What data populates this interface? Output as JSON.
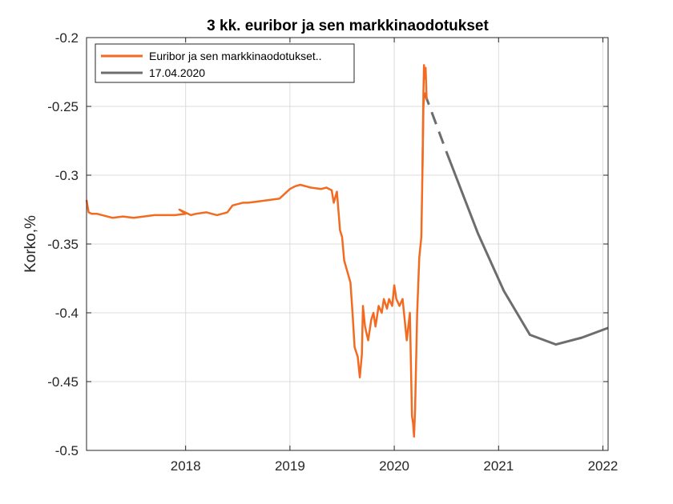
{
  "chart_data": {
    "type": "line",
    "title": "3 kk. euribor ja sen markkinaodotukset",
    "xlabel": "",
    "ylabel": "Korko,%",
    "xlim": [
      2017.05,
      2022.05
    ],
    "ylim": [
      -0.5,
      -0.2
    ],
    "x_ticks": [
      2018,
      2019,
      2020,
      2021,
      2022
    ],
    "x_tick_labels": [
      "2018",
      "2019",
      "2020",
      "2021",
      "2022"
    ],
    "y_ticks": [
      -0.2,
      -0.25,
      -0.3,
      -0.35,
      -0.4,
      -0.45,
      -0.5
    ],
    "y_tick_labels": [
      "-0.2",
      "-0.25",
      "-0.3",
      "-0.35",
      "-0.4",
      "-0.45",
      "-0.5"
    ],
    "grid": true,
    "legend_position": "top-left",
    "colors": {
      "euribor": "#f26b21",
      "forecast": "#6d6d6d",
      "grid": "#dcdcdc",
      "axes": "#262626"
    },
    "series": [
      {
        "name": "Euribor ja sen markkinaodotukset..",
        "style": "solid",
        "color": "#f26b21",
        "x": [
          2017.05,
          2017.07,
          2017.1,
          2017.15,
          2017.2,
          2017.3,
          2017.4,
          2017.5,
          2017.6,
          2017.7,
          2017.8,
          2017.9,
          2018.0,
          2017.94,
          2018.05,
          2018.1,
          2018.2,
          2018.3,
          2018.4,
          2018.45,
          2018.5,
          2018.55,
          2018.6,
          2018.7,
          2018.8,
          2018.9,
          2019.0,
          2019.05,
          2019.1,
          2019.2,
          2019.3,
          2019.35,
          2019.4,
          2019.42,
          2019.45,
          2019.48,
          2019.5,
          2019.52,
          2019.55,
          2019.58,
          2019.6,
          2019.62,
          2019.65,
          2019.67,
          2019.69,
          2019.7,
          2019.72,
          2019.75,
          2019.78,
          2019.8,
          2019.82,
          2019.85,
          2019.88,
          2019.9,
          2019.93,
          2019.95,
          2019.98,
          2020.0,
          2020.02,
          2020.05,
          2020.08,
          2020.1,
          2020.12,
          2020.15,
          2020.17,
          2020.18,
          2020.19,
          2020.2,
          2020.22,
          2020.24,
          2020.26,
          2020.27,
          2020.28,
          2020.29
        ],
        "y": [
          -0.318,
          -0.327,
          -0.328,
          -0.328,
          -0.329,
          -0.331,
          -0.33,
          -0.331,
          -0.33,
          -0.329,
          -0.329,
          -0.329,
          -0.328,
          -0.325,
          -0.329,
          -0.328,
          -0.327,
          -0.329,
          -0.327,
          -0.322,
          -0.321,
          -0.32,
          -0.32,
          -0.319,
          -0.318,
          -0.317,
          -0.31,
          -0.308,
          -0.307,
          -0.309,
          -0.31,
          -0.309,
          -0.311,
          -0.32,
          -0.312,
          -0.34,
          -0.345,
          -0.362,
          -0.37,
          -0.378,
          -0.4,
          -0.425,
          -0.432,
          -0.447,
          -0.43,
          -0.395,
          -0.41,
          -0.42,
          -0.405,
          -0.4,
          -0.41,
          -0.395,
          -0.4,
          -0.39,
          -0.397,
          -0.39,
          -0.395,
          -0.38,
          -0.39,
          -0.395,
          -0.39,
          -0.405,
          -0.42,
          -0.4,
          -0.475,
          -0.48,
          -0.49,
          -0.47,
          -0.4,
          -0.36,
          -0.345,
          -0.3,
          -0.25,
          -0.24
        ]
      },
      {
        "name": "17.04.2020",
        "style": "solid",
        "color": "#6d6d6d",
        "x": [
          2020.5,
          2020.8,
          2021.05,
          2021.3,
          2021.55,
          2021.8,
          2022.05
        ],
        "y": [
          -0.283,
          -0.342,
          -0.384,
          -0.416,
          -0.423,
          -0.418,
          -0.411
        ]
      }
    ],
    "spike": {
      "x": [
        2020.27,
        2020.28,
        2020.285,
        2020.29,
        2020.3,
        2020.31
      ],
      "y": [
        -0.3,
        -0.24,
        -0.22,
        -0.23,
        -0.222,
        -0.245
      ]
    },
    "dashed_connector": {
      "x": [
        2020.29,
        2020.5
      ],
      "y": [
        -0.24,
        -0.283
      ]
    }
  }
}
